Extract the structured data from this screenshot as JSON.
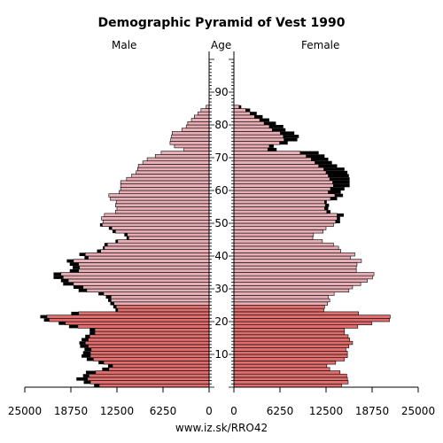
{
  "page": {
    "footer": "www.iz.sk/RRO42"
  },
  "chart_data": {
    "type": "bar",
    "title": "Demographic Pyramid of Vest 1990",
    "left_label": "Male",
    "center_label": "Age",
    "right_label": "Female",
    "age_ticks": [
      10,
      20,
      30,
      40,
      50,
      60,
      70,
      80,
      90
    ],
    "x_ticks_left": [
      "25000",
      "18750",
      "12500",
      "6250",
      "0"
    ],
    "x_ticks_right": [
      "0",
      "6250",
      "12500",
      "18750",
      "25000"
    ],
    "xlim": [
      0,
      25000
    ],
    "ages": [
      0,
      1,
      2,
      3,
      4,
      5,
      6,
      7,
      8,
      9,
      10,
      11,
      12,
      13,
      14,
      15,
      16,
      17,
      18,
      19,
      20,
      21,
      22,
      23,
      24,
      25,
      26,
      27,
      28,
      29,
      30,
      31,
      32,
      33,
      34,
      35,
      36,
      37,
      38,
      39,
      40,
      41,
      42,
      43,
      44,
      45,
      46,
      47,
      48,
      49,
      50,
      51,
      52,
      53,
      54,
      55,
      56,
      57,
      58,
      59,
      60,
      61,
      62,
      63,
      64,
      65,
      66,
      67,
      68,
      69,
      70,
      71,
      72,
      73,
      74,
      75,
      76,
      77,
      78,
      79,
      80,
      81,
      82,
      83,
      84,
      85
    ],
    "male": [
      14900,
      16100,
      16500,
      16300,
      15400,
      13600,
      13100,
      14300,
      15700,
      16100,
      16100,
      16000,
      16400,
      16800,
      16400,
      16200,
      15500,
      15500,
      17800,
      19500,
      21700,
      22000,
      17700,
      12400,
      12600,
      12900,
      13300,
      13300,
      14300,
      16600,
      17100,
      18400,
      19100,
      19800,
      20100,
      17700,
      17600,
      17700,
      18400,
      16400,
      16800,
      14700,
      14200,
      13800,
      12400,
      10900,
      11100,
      12700,
      13200,
      14500,
      14400,
      14600,
      14200,
      12700,
      12500,
      12700,
      12600,
      13400,
      13600,
      12200,
      12000,
      12000,
      12000,
      11200,
      10500,
      9900,
      9700,
      9600,
      9000,
      8400,
      7300,
      6500,
      3400,
      4700,
      5300,
      5200,
      5100,
      5000,
      3700,
      3100,
      2900,
      2400,
      2000,
      1500,
      1100,
      400
    ],
    "female": [
      14600,
      15500,
      15400,
      15300,
      14400,
      13000,
      12600,
      13800,
      15000,
      15400,
      15400,
      15200,
      15600,
      16100,
      15700,
      15500,
      15000,
      15000,
      16800,
      18700,
      21100,
      21200,
      16900,
      12200,
      12300,
      12700,
      13000,
      12800,
      13600,
      15600,
      16100,
      17200,
      18100,
      18800,
      19000,
      16600,
      16600,
      16700,
      17300,
      15800,
      16400,
      14500,
      14200,
      13500,
      12000,
      10700,
      10800,
      12100,
      12500,
      13500,
      13800,
      14000,
      14000,
      12600,
      12300,
      12400,
      12300,
      13100,
      13700,
      12800,
      13100,
      13500,
      13400,
      13000,
      12800,
      12500,
      12200,
      11500,
      11000,
      10500,
      9800,
      9000,
      4600,
      4800,
      6200,
      6800,
      6700,
      6300,
      5200,
      4800,
      4100,
      3500,
      2800,
      2200,
      1600,
      700
    ],
    "male_surplus": [
      700,
      900,
      1500,
      800,
      1300,
      900,
      600,
      700,
      900,
      1200,
      1000,
      900,
      1100,
      800,
      900,
      600,
      700,
      700,
      1200,
      900,
      700,
      900,
      1000,
      300,
      400,
      500,
      400,
      700,
      700,
      1100,
      1300,
      1400,
      1000,
      1300,
      1000,
      1200,
      900,
      1200,
      900,
      500,
      800,
      500,
      200,
      400,
      300,
      300,
      400,
      400,
      400,
      300,
      0,
      0,
      0,
      0,
      0,
      0,
      0,
      0,
      0,
      0,
      0,
      0,
      0,
      0,
      0,
      0,
      0,
      0,
      0,
      0,
      0,
      0,
      0,
      0,
      0,
      0,
      0,
      0,
      0,
      0,
      0,
      0,
      0,
      0,
      0,
      0
    ],
    "female_surplus": [
      0,
      0,
      0,
      0,
      0,
      0,
      0,
      0,
      0,
      0,
      0,
      0,
      0,
      0,
      0,
      0,
      0,
      0,
      0,
      0,
      0,
      0,
      0,
      0,
      0,
      0,
      0,
      0,
      0,
      0,
      0,
      0,
      0,
      0,
      0,
      0,
      0,
      0,
      0,
      0,
      0,
      0,
      0,
      0,
      0,
      0,
      0,
      0,
      0,
      0,
      600,
      400,
      900,
      500,
      500,
      500,
      300,
      900,
      1100,
      1700,
      1900,
      2200,
      2300,
      2700,
      2800,
      2900,
      2800,
      2500,
      2300,
      2300,
      2500,
      2500,
      1200,
      600,
      1100,
      1800,
      2100,
      1900,
      1800,
      1900,
      1600,
      1300,
      1100,
      900,
      600,
      300
    ],
    "colors": {
      "male_young": "#e06e6e",
      "male_old": "#e8aeb6",
      "female_young": "#e06e6e",
      "female_old": "#e8aeb6",
      "surplus": "#000000",
      "outline": "#000000"
    }
  }
}
